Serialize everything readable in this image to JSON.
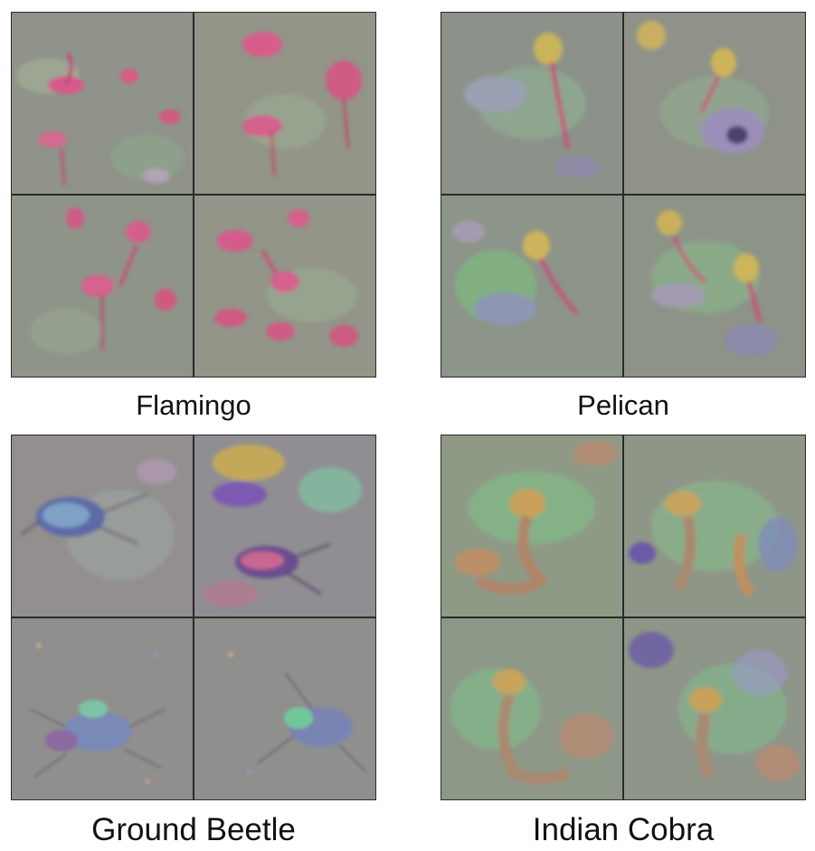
{
  "panels": [
    {
      "label": "Flamingo"
    },
    {
      "label": "Pelican"
    },
    {
      "label": "Ground Beetle"
    },
    {
      "label": "Indian Cobra"
    }
  ]
}
